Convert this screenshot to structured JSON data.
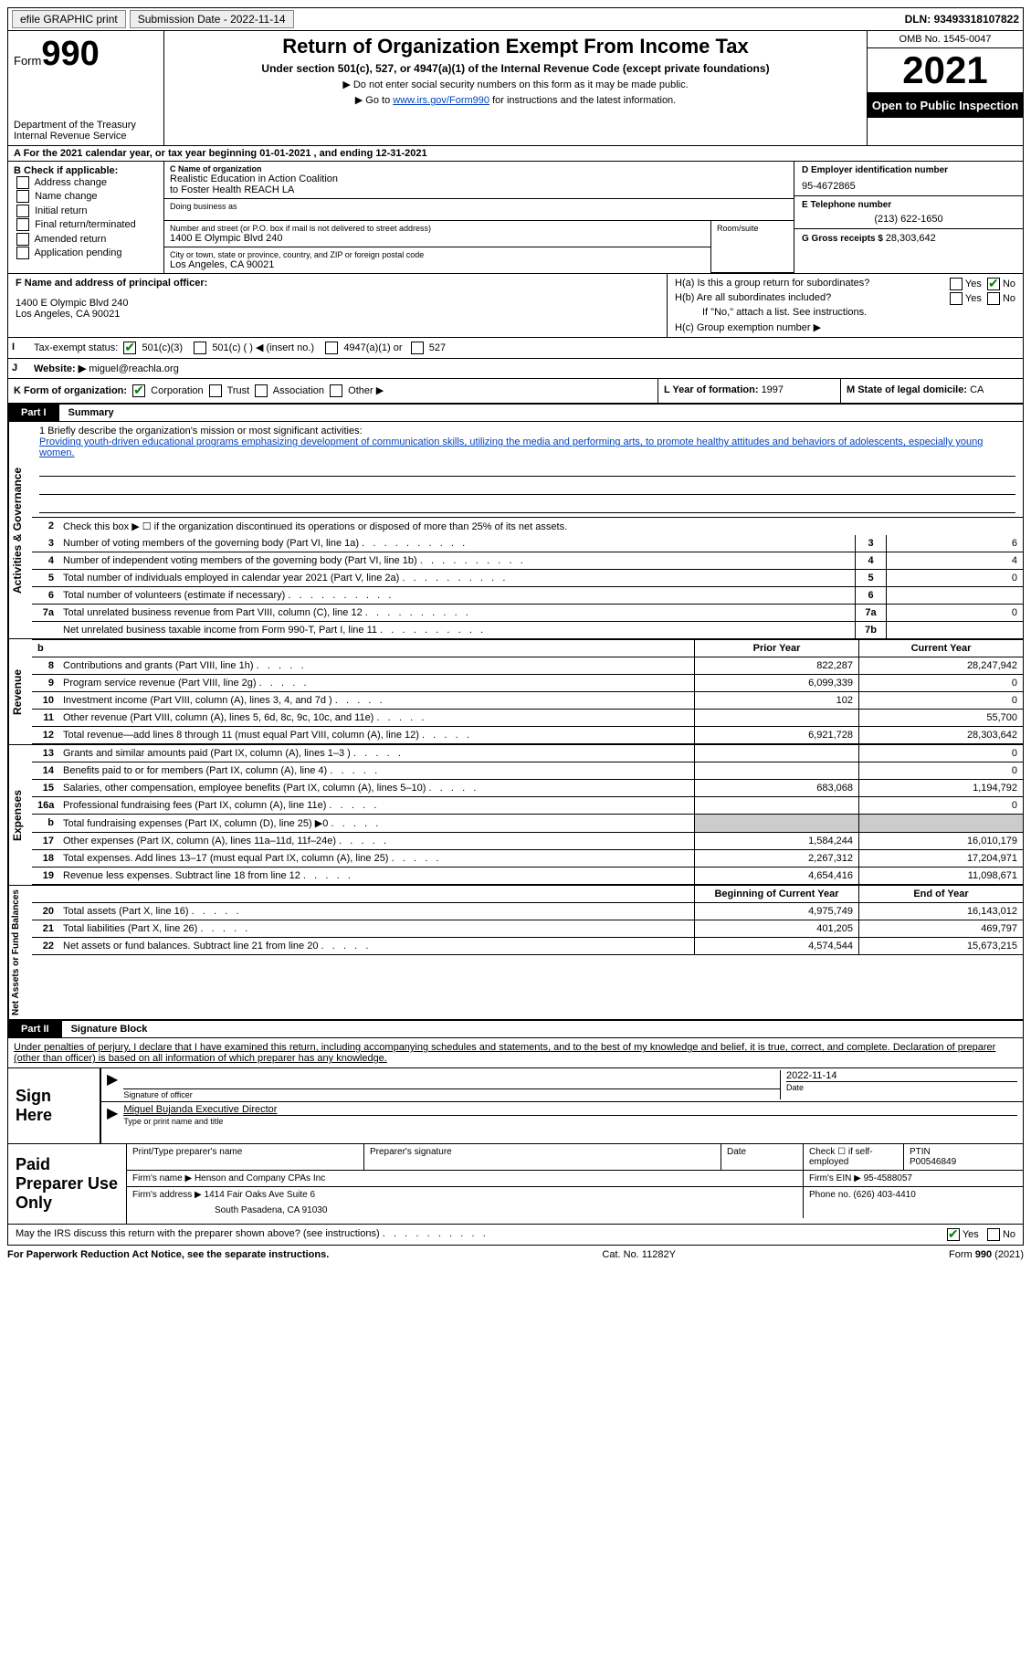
{
  "topbar": {
    "efile": "efile GRAPHIC print",
    "sub_label": "Submission Date - ",
    "sub_date": "2022-11-14",
    "dln_label": "DLN: ",
    "dln": "93493318107822"
  },
  "header": {
    "form_word": "Form",
    "form_no": "990",
    "dept": "Department of the Treasury Internal Revenue Service",
    "title": "Return of Organization Exempt From Income Tax",
    "subtitle": "Under section 501(c), 527, or 4947(a)(1) of the Internal Revenue Code (except private foundations)",
    "note1": "▶ Do not enter social security numbers on this form as it may be made public.",
    "note2_pre": "▶ Go to ",
    "note2_link": "www.irs.gov/Form990",
    "note2_post": " for instructions and the latest information.",
    "omb": "OMB No. 1545-0047",
    "year": "2021",
    "open": "Open to Public Inspection"
  },
  "row_a": "A For the 2021 calendar year, or tax year beginning 01-01-2021   , and ending 12-31-2021",
  "b": {
    "label": "B Check if applicable:",
    "opts": [
      "Address change",
      "Name change",
      "Initial return",
      "Final return/terminated",
      "Amended return",
      "Application pending"
    ]
  },
  "c": {
    "name_lbl": "C Name of organization",
    "name1": "Realistic Education in Action Coalition",
    "name2": "to Foster Health REACH LA",
    "dba_lbl": "Doing business as",
    "addr_lbl": "Number and street (or P.O. box if mail is not delivered to street address)",
    "addr": "1400 E Olympic Blvd 240",
    "room_lbl": "Room/suite",
    "city_lbl": "City or town, state or province, country, and ZIP or foreign postal code",
    "city": "Los Angeles, CA  90021"
  },
  "d": {
    "ein_lbl": "D Employer identification number",
    "ein": "95-4672865",
    "tel_lbl": "E Telephone number",
    "tel": "(213) 622-1650",
    "gross_lbl": "G Gross receipts $ ",
    "gross": "28,303,642"
  },
  "f": {
    "label": "F  Name and address of principal officer:",
    "addr1": "1400 E Olympic Blvd 240",
    "addr2": "Los Angeles, CA  90021"
  },
  "h": {
    "a": "H(a)  Is this a group return for subordinates?",
    "b": "H(b)  Are all subordinates included?",
    "note": "If \"No,\" attach a list. See instructions.",
    "c": "H(c)  Group exemption number ▶",
    "yes": "Yes",
    "no": "No"
  },
  "i": {
    "label": "Tax-exempt status:",
    "o1": "501(c)(3)",
    "o2": "501(c) (   ) ◀ (insert no.)",
    "o3": "4947(a)(1) or",
    "o4": "527"
  },
  "j": {
    "label": "Website: ▶",
    "value": "miguel@reachla.org"
  },
  "k": {
    "label": "K Form of organization:",
    "o1": "Corporation",
    "o2": "Trust",
    "o3": "Association",
    "o4": "Other ▶"
  },
  "l": {
    "label": "L Year of formation: ",
    "value": "1997"
  },
  "m": {
    "label": "M State of legal domicile: ",
    "value": "CA"
  },
  "part1": {
    "n": "Part I",
    "t": "Summary"
  },
  "mission": {
    "label": "1  Briefly describe the organization's mission or most significant activities:",
    "text": "Providing youth-driven educational programs emphasizing development of communication skills, utilizing the media and performing arts, to promote healthy attitudes and behaviors of adolescents, especially young women."
  },
  "line2": "Check this box ▶ ☐  if the organization discontinued its operations or disposed of more than 25% of its net assets.",
  "side1": "Activities & Governance",
  "side2": "Revenue",
  "side3": "Expenses",
  "side4": "Net Assets or Fund Balances",
  "gov_lines": [
    {
      "n": "3",
      "t": "Number of voting members of the governing body (Part VI, line 1a)",
      "bn": "3",
      "v": "6"
    },
    {
      "n": "4",
      "t": "Number of independent voting members of the governing body (Part VI, line 1b)",
      "bn": "4",
      "v": "4"
    },
    {
      "n": "5",
      "t": "Total number of individuals employed in calendar year 2021 (Part V, line 2a)",
      "bn": "5",
      "v": "0"
    },
    {
      "n": "6",
      "t": "Total number of volunteers (estimate if necessary)",
      "bn": "6",
      "v": ""
    },
    {
      "n": "7a",
      "t": "Total unrelated business revenue from Part VIII, column (C), line 12",
      "bn": "7a",
      "v": "0"
    },
    {
      "n": "",
      "t": "Net unrelated business taxable income from Form 990-T, Part I, line 11",
      "bn": "7b",
      "v": ""
    }
  ],
  "col_hdr": {
    "b": "b",
    "py": "Prior Year",
    "cy": "Current Year"
  },
  "rev_lines": [
    {
      "n": "8",
      "t": "Contributions and grants (Part VIII, line 1h)",
      "py": "822,287",
      "cy": "28,247,942"
    },
    {
      "n": "9",
      "t": "Program service revenue (Part VIII, line 2g)",
      "py": "6,099,339",
      "cy": "0"
    },
    {
      "n": "10",
      "t": "Investment income (Part VIII, column (A), lines 3, 4, and 7d )",
      "py": "102",
      "cy": "0"
    },
    {
      "n": "11",
      "t": "Other revenue (Part VIII, column (A), lines 5, 6d, 8c, 9c, 10c, and 11e)",
      "py": "",
      "cy": "55,700"
    },
    {
      "n": "12",
      "t": "Total revenue—add lines 8 through 11 (must equal Part VIII, column (A), line 12)",
      "py": "6,921,728",
      "cy": "28,303,642"
    }
  ],
  "exp_lines": [
    {
      "n": "13",
      "t": "Grants and similar amounts paid (Part IX, column (A), lines 1–3 )",
      "py": "",
      "cy": "0"
    },
    {
      "n": "14",
      "t": "Benefits paid to or for members (Part IX, column (A), line 4)",
      "py": "",
      "cy": "0"
    },
    {
      "n": "15",
      "t": "Salaries, other compensation, employee benefits (Part IX, column (A), lines 5–10)",
      "py": "683,068",
      "cy": "1,194,792"
    },
    {
      "n": "16a",
      "t": "Professional fundraising fees (Part IX, column (A), line 11e)",
      "py": "",
      "cy": "0"
    },
    {
      "n": "b",
      "t": "Total fundraising expenses (Part IX, column (D), line 25) ▶0",
      "py": "grey",
      "cy": "grey"
    },
    {
      "n": "17",
      "t": "Other expenses (Part IX, column (A), lines 11a–11d, 11f–24e)",
      "py": "1,584,244",
      "cy": "16,010,179"
    },
    {
      "n": "18",
      "t": "Total expenses. Add lines 13–17 (must equal Part IX, column (A), line 25)",
      "py": "2,267,312",
      "cy": "17,204,971"
    },
    {
      "n": "19",
      "t": "Revenue less expenses. Subtract line 18 from line 12",
      "py": "4,654,416",
      "cy": "11,098,671"
    }
  ],
  "na_hdr": {
    "py": "Beginning of Current Year",
    "cy": "End of Year"
  },
  "na_lines": [
    {
      "n": "20",
      "t": "Total assets (Part X, line 16)",
      "py": "4,975,749",
      "cy": "16,143,012"
    },
    {
      "n": "21",
      "t": "Total liabilities (Part X, line 26)",
      "py": "401,205",
      "cy": "469,797"
    },
    {
      "n": "22",
      "t": "Net assets or fund balances. Subtract line 21 from line 20",
      "py": "4,574,544",
      "cy": "15,673,215"
    }
  ],
  "part2": {
    "n": "Part II",
    "t": "Signature Block"
  },
  "declare": "Under penalties of perjury, I declare that I have examined this return, including accompanying schedules and statements, and to the best of my knowledge and belief, it is true, correct, and complete. Declaration of preparer (other than officer) is based on all information of which preparer has any knowledge.",
  "sign": {
    "label": "Sign Here",
    "sig_cap": "Signature of officer",
    "date": "2022-11-14",
    "date_cap": "Date",
    "name": "Miguel Bujanda  Executive Director",
    "name_cap": "Type or print name and title"
  },
  "prep": {
    "label": "Paid Preparer Use Only",
    "c1": "Print/Type preparer's name",
    "c2": "Preparer's signature",
    "c3": "Date",
    "c4_lbl": "Check ☐ if self-employed",
    "c5_lbl": "PTIN",
    "c5_val": "P00546849",
    "firm_lbl": "Firm's name    ▶ ",
    "firm": "Henson and Company CPAs Inc",
    "ein_lbl": "Firm's EIN ▶ ",
    "ein": "95-4588057",
    "addr_lbl": "Firm's address ▶ ",
    "addr1": "1414 Fair Oaks Ave Suite 6",
    "addr2": "South Pasadena, CA  91030",
    "tel_lbl": "Phone no. ",
    "tel": "(626) 403-4410"
  },
  "may": {
    "text": "May the IRS discuss this return with the preparer shown above? (see instructions)",
    "yes": "Yes",
    "no": "No"
  },
  "footer": {
    "l": "For Paperwork Reduction Act Notice, see the separate instructions.",
    "m": "Cat. No. 11282Y",
    "r": "Form 990 (2021)"
  }
}
